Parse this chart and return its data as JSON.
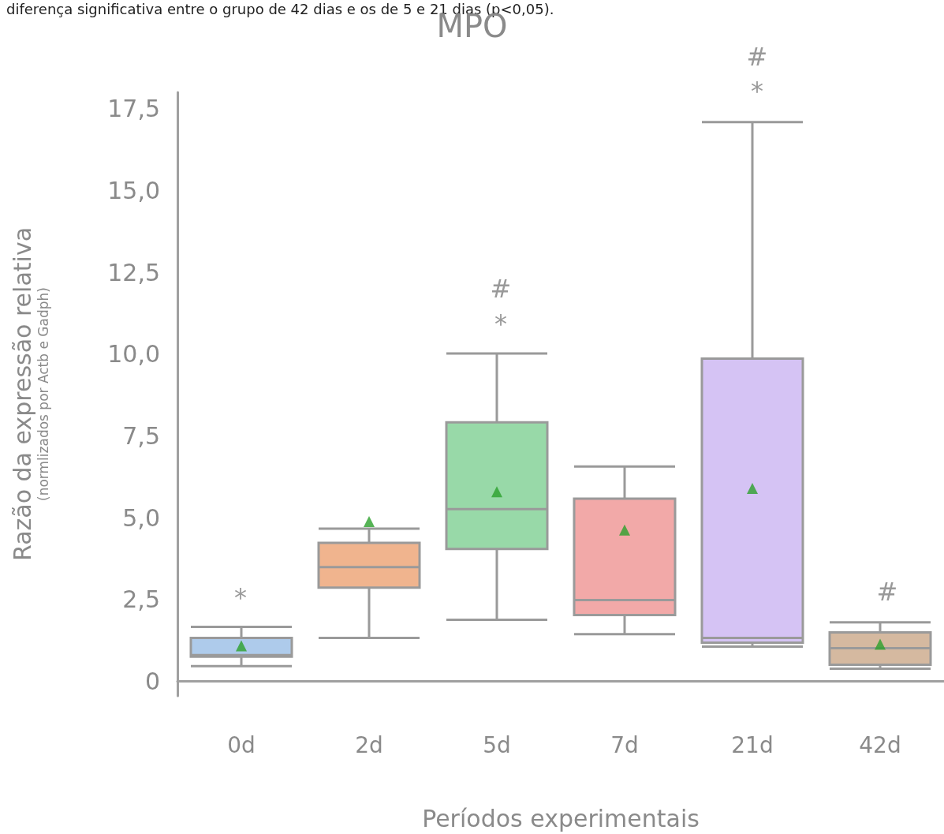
{
  "chart_data": {
    "type": "box",
    "title": "MPO",
    "xlabel": "Períodos experimentais",
    "ylabel": "Razão da expressão relativa\n(normlizados por Actb e Gadph)",
    "categories": [
      "0d",
      "2d",
      "5d",
      "7d",
      "21d",
      "42d"
    ],
    "series": [
      {
        "colors": [
          "#aecbeb",
          "#f0b48e",
          "#98d9a8",
          "#f2a9a8",
          "#d5c3f4",
          "#d5b9a0"
        ],
        "boxes": [
          {
            "low": 0.46,
            "q1": 0.75,
            "median": 0.8,
            "q3": 1.32,
            "high": 1.66
          },
          {
            "low": 1.32,
            "q1": 2.86,
            "median": 3.49,
            "q3": 4.23,
            "high": 4.66
          },
          {
            "low": 1.88,
            "q1": 4.04,
            "median": 5.26,
            "q3": 7.91,
            "high": 10.02
          },
          {
            "low": 1.44,
            "q1": 2.02,
            "median": 2.48,
            "q3": 5.58,
            "high": 6.56
          },
          {
            "low": 1.06,
            "q1": 1.18,
            "median": 1.32,
            "q3": 9.86,
            "high": 17.09
          },
          {
            "low": 0.38,
            "q1": 0.5,
            "median": 1.01,
            "q3": 1.49,
            "high": 1.8
          }
        ]
      },
      {
        "type": "scatter",
        "color": "#2ca02c",
        "marker": "triangle",
        "x": [
          "0d",
          "2d",
          "5d",
          "7d",
          "21d",
          "42d"
        ],
        "values": [
          1.08,
          4.88,
          5.79,
          4.62,
          5.89,
          1.13
        ]
      }
    ],
    "ylim": [
      -0.45,
      18
    ],
    "yticks": [
      0,
      {
        "value": 2.5,
        "label": "2,5"
      },
      {
        "value": 5,
        "label": "5,0"
      },
      {
        "value": 7.5,
        "label": "7,5"
      },
      {
        "value": 10,
        "label": "10,0"
      },
      {
        "value": 12.5,
        "label": "12,5"
      },
      {
        "value": 15,
        "label": "15,0"
      },
      {
        "value": 17.5,
        "label": "17,5"
      }
    ],
    "grid": false,
    "annotations": [
      "diferença significativa entre o grupo de 42 dias e os de 5 e 21 dias (p<0,05).",
      "*",
      "*",
      "#",
      "*",
      "#",
      "#"
    ]
  }
}
